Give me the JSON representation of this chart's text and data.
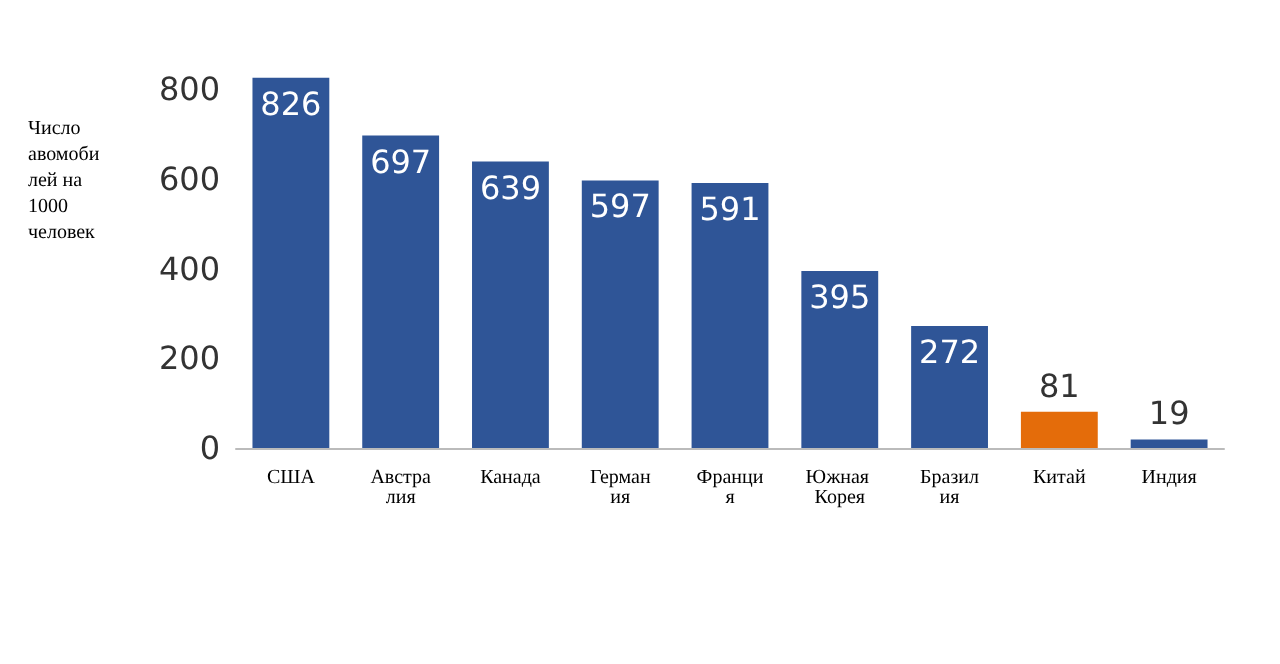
{
  "chart_data": {
    "type": "bar",
    "ylabel": "Число авомобилей на 1000 человек",
    "categories": [
      "США",
      "Австралия",
      "Канада",
      "Германия",
      "Франция",
      "Южная Корея",
      "Бразилия",
      "Китай",
      "Индия"
    ],
    "values": [
      826,
      697,
      639,
      597,
      591,
      395,
      272,
      81,
      19
    ],
    "colors": [
      "#2f5597",
      "#2f5597",
      "#2f5597",
      "#2f5597",
      "#2f5597",
      "#2f5597",
      "#2f5597",
      "#e46c0a",
      "#2f5597"
    ],
    "ylim": [
      0,
      830
    ],
    "yticks": [
      0,
      200,
      400,
      600,
      800
    ],
    "grid": false,
    "data_labels": true
  }
}
